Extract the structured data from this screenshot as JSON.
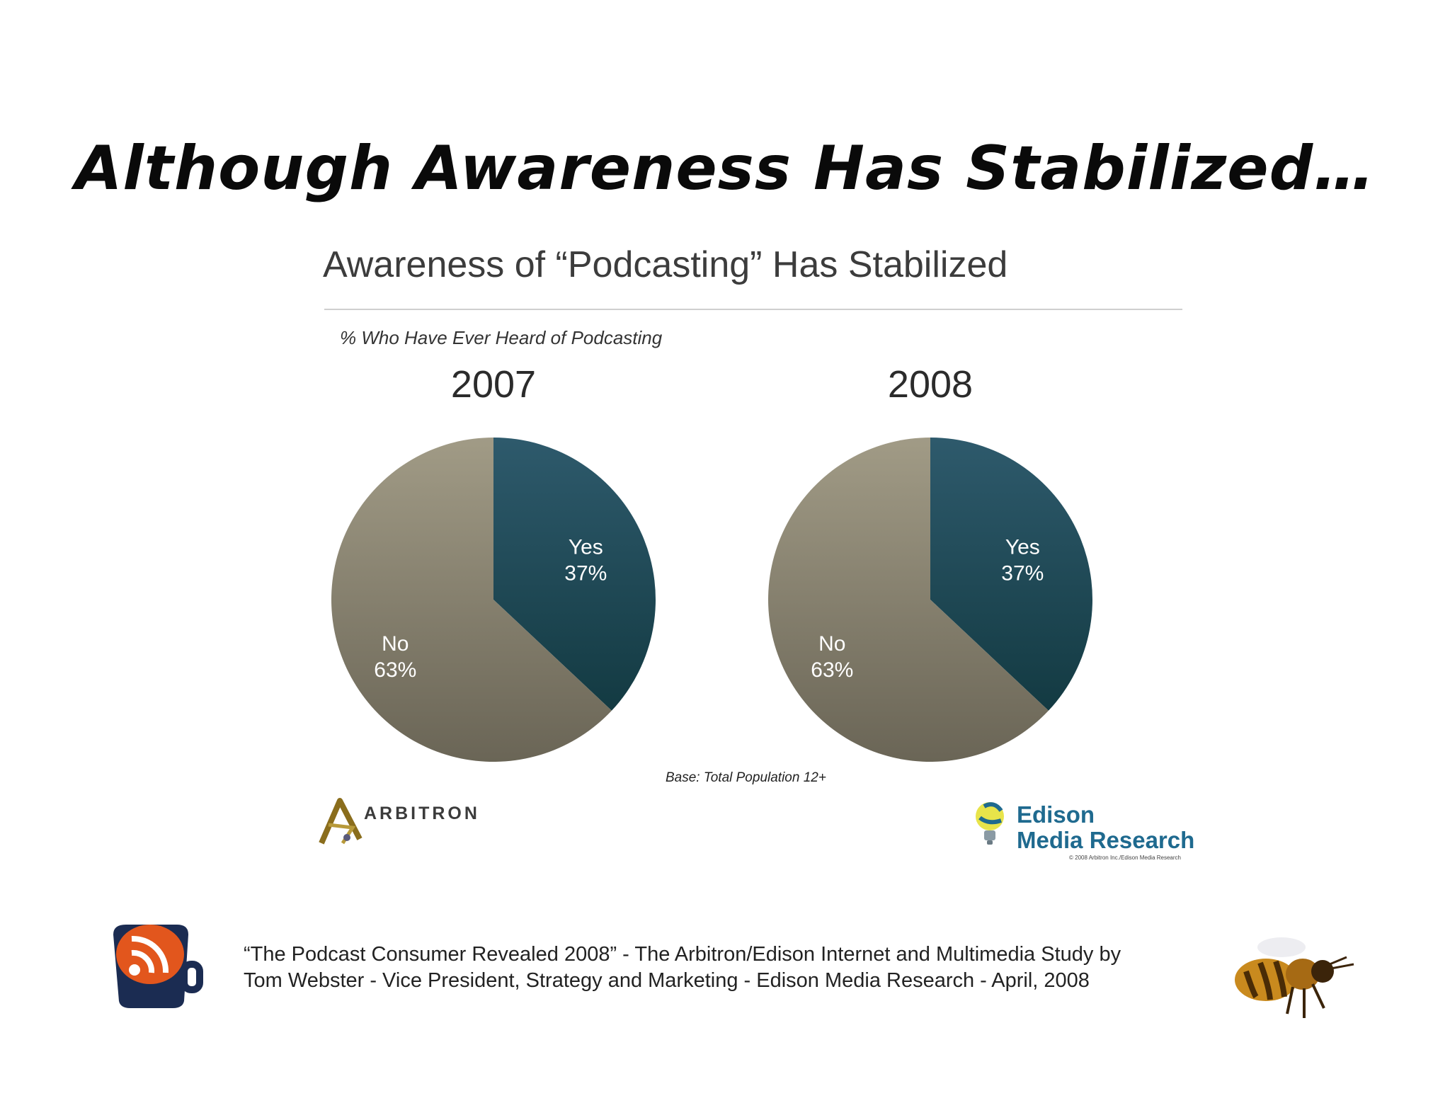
{
  "slide": {
    "title": "Although Awareness Has Stabilized…",
    "source_lines": [
      "“The Podcast Consumer Revealed 2008” - The Arbitron/Edison Internet and Multimedia Study by",
      "Tom Webster - Vice President, Strategy and Marketing - Edison Media Research - April, 2008"
    ]
  },
  "logos": {
    "arbitron": "ARBITRON",
    "edison_line1": "Edison",
    "edison_line2": "Media Research",
    "edison_copyright": "© 2008 Arbitron Inc./Edison Media Research"
  },
  "icons": {
    "left": "rss-mug-icon",
    "right": "bee-icon"
  },
  "colors": {
    "yes": "#1f4a5a",
    "no": "#8c8571",
    "label": "#ffffff"
  },
  "chart_data": [
    {
      "type": "pie",
      "title": "Awareness of “Podcasting” Has Stabilized",
      "subtitle": "% Who Have Ever Heard of Podcasting",
      "panel_title": "2007",
      "slices": [
        {
          "label": "Yes",
          "value": 37,
          "value_label": "37%"
        },
        {
          "label": "No",
          "value": 63,
          "value_label": "63%"
        }
      ],
      "note": "Base: Total Population 12+"
    },
    {
      "type": "pie",
      "panel_title": "2008",
      "slices": [
        {
          "label": "Yes",
          "value": 37,
          "value_label": "37%"
        },
        {
          "label": "No",
          "value": 63,
          "value_label": "63%"
        }
      ]
    }
  ]
}
